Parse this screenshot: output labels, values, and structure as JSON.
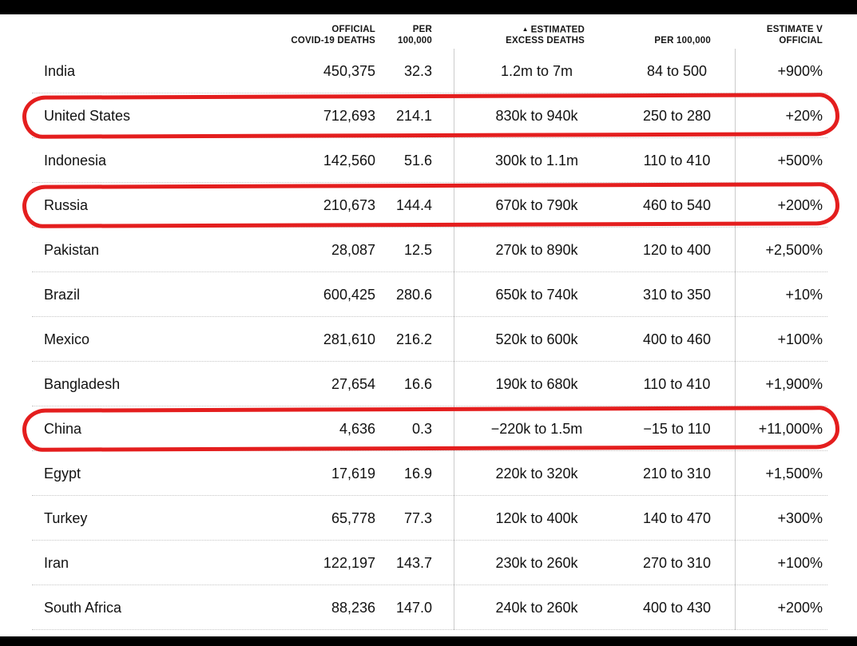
{
  "colors": {
    "frame": "#000000",
    "background": "#ffffff",
    "text": "#121212",
    "row_separator": "#c6c6c6",
    "column_divider": "#cccccc",
    "annotation_red": "#e41e1e"
  },
  "chart_data": {
    "type": "table",
    "sort": "ascending by estimated excess deaths",
    "columns": {
      "country": {
        "line1": "",
        "line2": ""
      },
      "official": {
        "line1": "OFFICIAL",
        "line2": "COVID-19 DEATHS"
      },
      "per100k": {
        "line1": "PER",
        "line2": "100,000"
      },
      "excess": {
        "sort_icon": "▲",
        "line1": "ESTIMATED",
        "line2": "EXCESS DEATHS"
      },
      "excess_per100k": {
        "line1": "",
        "line2": "PER 100,000"
      },
      "estimate": {
        "line1": "ESTIMATE V",
        "line2": "OFFICIAL"
      }
    },
    "rows": [
      {
        "country": "India",
        "official": "450,375",
        "per100k": "32.3",
        "excess": "1.2m to 7m",
        "excess_per100k": "84 to 500",
        "estimate": "+900%"
      },
      {
        "country": "United States",
        "official": "712,693",
        "per100k": "214.1",
        "excess": "830k to 940k",
        "excess_per100k": "250 to 280",
        "estimate": "+20%"
      },
      {
        "country": "Indonesia",
        "official": "142,560",
        "per100k": "51.6",
        "excess": "300k to 1.1m",
        "excess_per100k": "110 to 410",
        "estimate": "+500%"
      },
      {
        "country": "Russia",
        "official": "210,673",
        "per100k": "144.4",
        "excess": "670k to 790k",
        "excess_per100k": "460 to 540",
        "estimate": "+200%"
      },
      {
        "country": "Pakistan",
        "official": "28,087",
        "per100k": "12.5",
        "excess": "270k to 890k",
        "excess_per100k": "120 to 400",
        "estimate": "+2,500%"
      },
      {
        "country": "Brazil",
        "official": "600,425",
        "per100k": "280.6",
        "excess": "650k to 740k",
        "excess_per100k": "310 to 350",
        "estimate": "+10%"
      },
      {
        "country": "Mexico",
        "official": "281,610",
        "per100k": "216.2",
        "excess": "520k to 600k",
        "excess_per100k": "400 to 460",
        "estimate": "+100%"
      },
      {
        "country": "Bangladesh",
        "official": "27,654",
        "per100k": "16.6",
        "excess": "190k to 680k",
        "excess_per100k": "110 to 410",
        "estimate": "+1,900%"
      },
      {
        "country": "China",
        "official": "4,636",
        "per100k": "0.3",
        "excess": "−220k to 1.5m",
        "excess_per100k": "−15 to 110",
        "estimate": "+11,000%"
      },
      {
        "country": "Egypt",
        "official": "17,619",
        "per100k": "16.9",
        "excess": "220k to 320k",
        "excess_per100k": "210 to 310",
        "estimate": "+1,500%"
      },
      {
        "country": "Turkey",
        "official": "65,778",
        "per100k": "77.3",
        "excess": "120k to 400k",
        "excess_per100k": "140 to 470",
        "estimate": "+300%"
      },
      {
        "country": "Iran",
        "official": "122,197",
        "per100k": "143.7",
        "excess": "230k to 260k",
        "excess_per100k": "270 to 310",
        "estimate": "+100%"
      },
      {
        "country": "South Africa",
        "official": "88,236",
        "per100k": "147.0",
        "excess": "240k to 260k",
        "excess_per100k": "400 to 430",
        "estimate": "+200%"
      }
    ],
    "annotations": {
      "circled_rows": [
        "United States",
        "Russia",
        "China"
      ],
      "circle_color": "#e41e1e"
    }
  }
}
